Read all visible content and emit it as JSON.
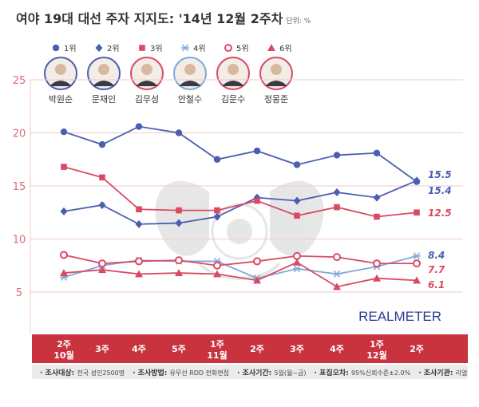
{
  "title": "여야 19대 대선 주자 지지도: '14년 12월 2주차",
  "unit_label": "단위: %",
  "brand": "REALMETER",
  "candidates": [
    {
      "rank": "1위",
      "name": "박원순",
      "color": "#4a5fb2",
      "marker": "circle"
    },
    {
      "rank": "2위",
      "name": "문재인",
      "color": "#4a5fb2",
      "marker": "diamond"
    },
    {
      "rank": "3위",
      "name": "김무성",
      "color": "#c73a4a",
      "marker": "square"
    },
    {
      "rank": "4위",
      "name": "안철수",
      "color": "#7fa8d8",
      "marker": "asterisk"
    },
    {
      "rank": "5위",
      "name": "김문수",
      "color": "#c73a4a",
      "marker": "ring"
    },
    {
      "rank": "6위",
      "name": "정몽준",
      "color": "#c73a4a",
      "marker": "triangle"
    }
  ],
  "footer": {
    "items": [
      {
        "k": "조사대상:",
        "v": "전국 성인2500명"
      },
      {
        "k": "조사방법:",
        "v": "유무선 RDD 전화면접"
      },
      {
        "k": "조사기간:",
        "v": "5일(월~금)"
      },
      {
        "k": "표집오차:",
        "v": "95%신뢰수준±2.0%"
      },
      {
        "k": "조사기관:",
        "v": "리얼미터"
      }
    ]
  },
  "chart_data": {
    "type": "line",
    "x": [
      "2주\n10월",
      "3주",
      "4주",
      "5주",
      "1주\n11월",
      "2주",
      "3주",
      "4주",
      "1주\n12월",
      "2주"
    ],
    "ylim": [
      3,
      25
    ],
    "yticks": [
      5,
      10,
      15,
      20,
      25
    ],
    "grid": true,
    "series": [
      {
        "name": "박원순",
        "rank": "1위",
        "color": "#4a5fb2",
        "marker": "circle",
        "values": [
          20.1,
          18.9,
          20.6,
          20.0,
          17.5,
          18.3,
          17.0,
          17.9,
          18.1,
          15.4
        ],
        "end_label": "15.4"
      },
      {
        "name": "문재인",
        "rank": "2위",
        "color": "#4a5fb2",
        "marker": "diamond",
        "values": [
          12.6,
          13.2,
          11.4,
          11.5,
          12.1,
          13.9,
          13.6,
          14.4,
          13.9,
          15.5
        ],
        "end_label": "15.5"
      },
      {
        "name": "김무성",
        "rank": "3위",
        "color": "#d94a64",
        "marker": "square",
        "values": [
          16.8,
          15.8,
          12.8,
          12.7,
          12.7,
          13.6,
          12.2,
          13.0,
          12.1,
          12.5
        ],
        "end_label": "12.5"
      },
      {
        "name": "안철수",
        "rank": "4위",
        "color": "#7fa8d8",
        "marker": "asterisk",
        "values": [
          6.4,
          7.5,
          8.0,
          7.9,
          7.9,
          6.3,
          7.2,
          6.7,
          7.4,
          8.4
        ],
        "end_label": "8.4"
      },
      {
        "name": "김문수",
        "rank": "5위",
        "color": "#d94a64",
        "marker": "ring",
        "values": [
          8.5,
          7.7,
          7.9,
          8.0,
          7.5,
          7.9,
          8.4,
          8.3,
          7.7,
          7.7
        ],
        "end_label": "7.7"
      },
      {
        "name": "정몽준",
        "rank": "6위",
        "color": "#d94a64",
        "marker": "triangle",
        "values": [
          6.8,
          7.1,
          6.7,
          6.8,
          6.7,
          6.1,
          7.8,
          5.5,
          6.3,
          6.1
        ],
        "end_label": "6.1"
      }
    ]
  }
}
